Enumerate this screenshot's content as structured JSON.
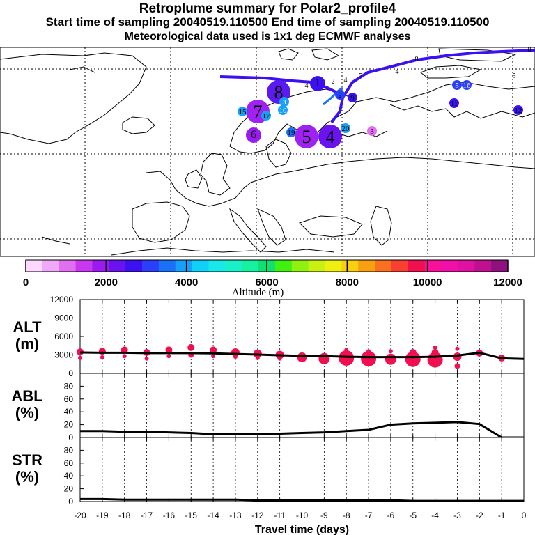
{
  "header": {
    "title": "Retroplume summary for Polar2_profile4",
    "times": "Start time of sampling 20040519.110500     End time of sampling 20040519.110500",
    "met": "Meteorological data used is 1x1 deg ECMWF analyses"
  },
  "colorbar": {
    "colors": [
      "#ffd8ff",
      "#f0a8f8",
      "#e070f0",
      "#c838f0",
      "#9a1af0",
      "#6a12f0",
      "#3c10f0",
      "#2a40f8",
      "#1a70f8",
      "#16a0f8",
      "#10d0f8",
      "#18e8e8",
      "#18f0c8",
      "#18f0a0",
      "#10e070",
      "#40f010",
      "#90f010",
      "#c8f010",
      "#f0f010",
      "#f8d010",
      "#f8a010",
      "#f87020",
      "#f84030",
      "#f01050",
      "#f81098",
      "#f010a8",
      "#e010a0",
      "#c01090",
      "#901080"
    ],
    "tick_labels": [
      "0",
      "2000",
      "4000",
      "6000",
      "8000",
      "10000",
      "12000"
    ],
    "label": "Altitude (m)"
  },
  "map": {
    "clusters": [
      {
        "n": "8",
        "c": "#5a1af0",
        "size": "l",
        "tc": "#000"
      },
      {
        "n": "7",
        "c": "#a022f0",
        "size": "l",
        "tc": "#000"
      },
      {
        "n": "5",
        "c": "#a022f0",
        "size": "l",
        "tc": "#000"
      },
      {
        "n": "4",
        "c": "#6a12f0",
        "size": "l",
        "tc": "#000"
      },
      {
        "n": "6",
        "c": "#9a1af0",
        "size": "m",
        "tc": "#000"
      },
      {
        "n": "1",
        "c": "#3c10f0",
        "size": "m",
        "tc": "#000"
      },
      {
        "n": "11",
        "c": "#3c10f0",
        "size": "s",
        "tc": "#000"
      },
      {
        "n": "12",
        "c": "#3c10f0",
        "size": "s",
        "tc": "#000"
      },
      {
        "n": "9",
        "c": "#3c10f0",
        "size": "s",
        "tc": "#000"
      },
      {
        "n": "2",
        "c": "#2a40f8",
        "size": "s",
        "tc": "#000"
      },
      {
        "n": "3",
        "c": "#16a0f8",
        "size": "s",
        "tc": "#fff"
      },
      {
        "n": "10",
        "c": "#16a0f8",
        "size": "s",
        "tc": "#fff"
      },
      {
        "n": "15",
        "c": "#16a0f8",
        "size": "s",
        "tc": "#000"
      },
      {
        "n": "17",
        "c": "#16a0f8",
        "size": "s",
        "tc": "#000"
      },
      {
        "n": "20",
        "c": "#16a0f8",
        "size": "s",
        "tc": "#000"
      },
      {
        "n": "19",
        "c": "#1a70f8",
        "size": "s",
        "tc": "#000"
      },
      {
        "n": "5",
        "c": "#2a40f8",
        "size": "s",
        "tc": "#fff"
      },
      {
        "n": "16",
        "c": "#2a40f8",
        "size": "s",
        "tc": "#fff"
      },
      {
        "n": "3",
        "c": "#e070f0",
        "size": "s",
        "tc": "#000"
      }
    ],
    "path_labels": [
      "7",
      "4",
      "8",
      "8",
      "5",
      "4",
      "6",
      "4",
      "1",
      "2"
    ]
  },
  "chart_data": [
    {
      "type": "line",
      "panel": "ALT",
      "ylabel": "ALT\n(m)",
      "ylabel_lines": [
        "ALT",
        "(m)"
      ],
      "ylim": [
        0,
        12000
      ],
      "yticks": [
        0,
        3000,
        6000,
        9000,
        12000
      ],
      "ytick_labels": [
        "0",
        "3000",
        "6000",
        "9000",
        "12000"
      ],
      "x": [
        -20,
        -19,
        -18,
        -17,
        -16,
        -15,
        -14,
        -13,
        -12,
        -11,
        -10,
        -9,
        -8,
        -7,
        -6,
        -5,
        -4,
        -3,
        -2,
        -1,
        0
      ],
      "y": [
        3400,
        3350,
        3350,
        3300,
        3300,
        3300,
        3250,
        3150,
        3050,
        2950,
        2850,
        2800,
        2700,
        2650,
        2650,
        2650,
        2700,
        2900,
        3350,
        2450,
        2350
      ],
      "marker_color": "#f01050",
      "markers": [
        {
          "x": -20,
          "alts": [
            3500,
            2500
          ],
          "r": [
            5,
            3
          ]
        },
        {
          "x": -19,
          "alts": [
            3600,
            2600
          ],
          "r": [
            5,
            3
          ]
        },
        {
          "x": -18,
          "alts": [
            3800,
            2800
          ],
          "r": [
            5,
            3
          ]
        },
        {
          "x": -17,
          "alts": [
            3400,
            2400
          ],
          "r": [
            5,
            3
          ]
        },
        {
          "x": -16,
          "alts": [
            3800,
            2800
          ],
          "r": [
            5,
            3
          ]
        },
        {
          "x": -15,
          "alts": [
            4200,
            3000
          ],
          "r": [
            5,
            4
          ]
        },
        {
          "x": -14,
          "alts": [
            3800,
            2800
          ],
          "r": [
            5,
            3
          ]
        },
        {
          "x": -13,
          "alts": [
            3400,
            2700
          ],
          "r": [
            6,
            3
          ]
        },
        {
          "x": -12,
          "alts": [
            3200,
            2500
          ],
          "r": [
            6,
            3
          ]
        },
        {
          "x": -11,
          "alts": [
            3000,
            2400
          ],
          "r": [
            6,
            3
          ]
        },
        {
          "x": -10,
          "alts": [
            2600
          ],
          "r": [
            7
          ]
        },
        {
          "x": -9,
          "alts": [
            2400
          ],
          "r": [
            8
          ]
        },
        {
          "x": -8,
          "alts": [
            2500,
            3800
          ],
          "r": [
            11,
            3
          ]
        },
        {
          "x": -7,
          "alts": [
            2400,
            3600
          ],
          "r": [
            11,
            3
          ]
        },
        {
          "x": -6,
          "alts": [
            2300,
            3600
          ],
          "r": [
            8,
            3
          ]
        },
        {
          "x": -5,
          "alts": [
            2300,
            3400
          ],
          "r": [
            11,
            5
          ]
        },
        {
          "x": -4,
          "alts": [
            2200,
            3400,
            4200
          ],
          "r": [
            11,
            5,
            3
          ]
        },
        {
          "x": -3,
          "alts": [
            2700,
            1200,
            4000
          ],
          "r": [
            6,
            4,
            3
          ]
        },
        {
          "x": -2,
          "alts": [
            3300
          ],
          "r": [
            5
          ]
        },
        {
          "x": -1,
          "alts": [
            2500
          ],
          "r": [
            5
          ]
        }
      ]
    },
    {
      "type": "line",
      "panel": "ABL",
      "ylabel_lines": [
        "ABL",
        "(%)"
      ],
      "ylim": [
        0,
        100
      ],
      "yticks": [
        0,
        20,
        40,
        60,
        80
      ],
      "ytick_labels": [
        "0",
        "20",
        "40",
        "60",
        "80"
      ],
      "x": [
        -20,
        -19,
        -18,
        -17,
        -16,
        -15,
        -14,
        -13,
        -12,
        -11,
        -10,
        -9,
        -8,
        -7,
        -6,
        -5,
        -4,
        -3,
        -2,
        -1,
        0
      ],
      "y": [
        10,
        10,
        9,
        9,
        8,
        7,
        5,
        5,
        5,
        6,
        7,
        8,
        10,
        12,
        20,
        22,
        23,
        24,
        21,
        0,
        0
      ]
    },
    {
      "type": "line",
      "panel": "STR",
      "ylabel_lines": [
        "STR",
        "(%)"
      ],
      "ylim": [
        0,
        100
      ],
      "yticks": [
        0,
        20,
        40,
        60,
        80
      ],
      "ytick_labels": [
        "0",
        "20",
        "40",
        "60",
        "80"
      ],
      "x": [
        -20,
        -19,
        -18,
        -17,
        -16,
        -15,
        -14,
        -13,
        -12,
        -11,
        -10,
        -9,
        -8,
        -7,
        -6,
        -5,
        -4,
        -3,
        -2,
        -1,
        0
      ],
      "y": [
        4,
        4,
        3,
        3,
        3,
        3,
        3,
        3,
        2,
        2,
        2,
        2,
        2,
        2,
        2,
        1,
        1,
        1,
        1,
        1,
        1
      ],
      "xlabel": "Travel time (days)",
      "xtick_labels": [
        "-20",
        "-19",
        "-18",
        "-17",
        "-16",
        "-15",
        "-14",
        "-13",
        "-12",
        "-11",
        "-10",
        "-9",
        "-8",
        "-7",
        "-6",
        "-5",
        "-4",
        "-3",
        "-2",
        "-1",
        "0"
      ]
    }
  ]
}
